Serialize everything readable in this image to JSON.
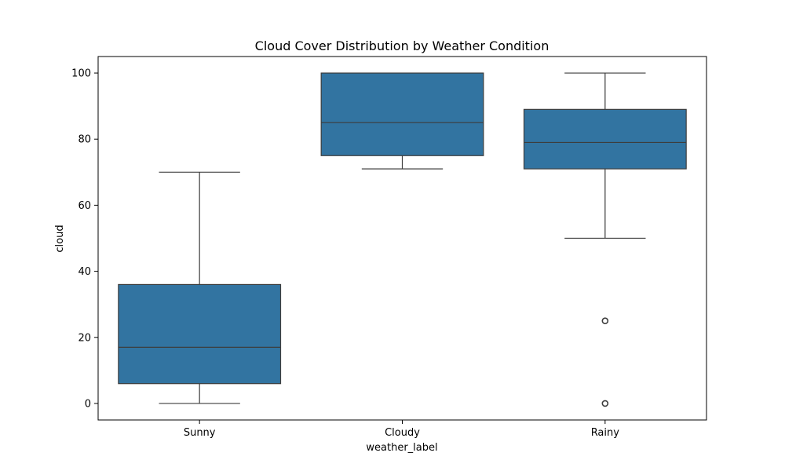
{
  "chart_data": {
    "type": "box",
    "title": "Cloud Cover Distribution by Weather Condition",
    "xlabel": "weather_label",
    "ylabel": "cloud",
    "ylim": [
      -5,
      105
    ],
    "yticks": [
      0,
      20,
      40,
      60,
      80,
      100
    ],
    "grid": false,
    "box_color": "#3274a1",
    "line_color": "#3d3d3d",
    "categories": [
      "Sunny",
      "Cloudy",
      "Rainy"
    ],
    "boxes": [
      {
        "category": "Sunny",
        "whisker_low": 0,
        "q1": 6,
        "median": 17,
        "q3": 36,
        "whisker_high": 70,
        "outliers": []
      },
      {
        "category": "Cloudy",
        "whisker_low": 71,
        "q1": 75,
        "median": 85,
        "q3": 100,
        "whisker_high": 100,
        "outliers": []
      },
      {
        "category": "Rainy",
        "whisker_low": 50,
        "q1": 71,
        "median": 79,
        "q3": 89,
        "whisker_high": 100,
        "outliers": [
          25,
          0
        ]
      }
    ]
  }
}
